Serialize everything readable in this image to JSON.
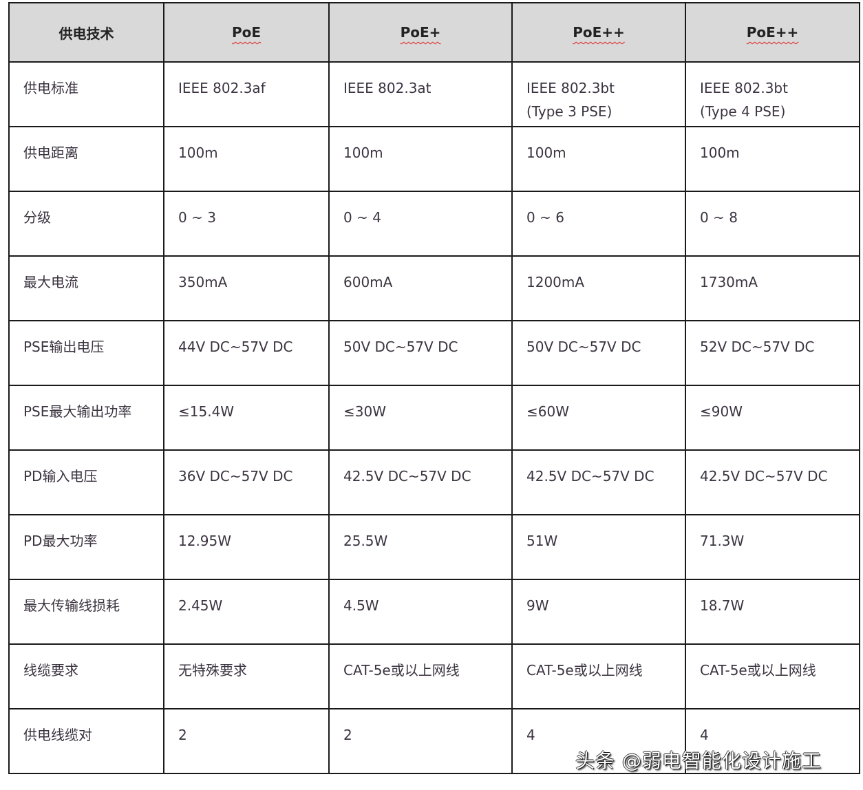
{
  "header": [
    "供电技术",
    "PoE",
    "PoE+",
    "PoE++",
    "PoE++"
  ],
  "rows": [
    [
      "供电标准",
      "IEEE 802.3af",
      "IEEE 802.3at",
      "IEEE 802.3bt\n(Type 3 PSE)",
      "IEEE 802.3bt\n(Type 4 PSE)"
    ],
    [
      "供电距离",
      "100m",
      "100m",
      "100m",
      "100m"
    ],
    [
      "分级",
      "0 ~ 3",
      "0 ~ 4",
      "0 ~ 6",
      "0 ~ 8"
    ],
    [
      "最大电流",
      "350mA",
      "600mA",
      "1200mA",
      "1730mA"
    ],
    [
      "PSE输出电压",
      "44V DC~57V DC",
      "50V DC~57V DC",
      "50V DC~57V DC",
      "52V DC~57V DC"
    ],
    [
      "PSE最大输出功率",
      "≤15.4W",
      "≤30W",
      "≤60W",
      "≤90W"
    ],
    [
      "PD输入电压",
      "36V DC~57V DC",
      "42.5V DC~57V DC",
      "42.5V DC~57V DC",
      "42.5V DC~57V DC"
    ],
    [
      "PD最大功率",
      "12.95W",
      "25.5W",
      "51W",
      "71.3W"
    ],
    [
      "最大传输线损耗",
      "2.45W",
      "4.5W",
      "9W",
      "18.7W"
    ],
    [
      "线缆要求",
      "无特殊要求",
      "CAT-5e或以上网线",
      "CAT-5e或以上网线",
      "CAT-5e或以上网线"
    ],
    [
      "供电线缆对",
      "2",
      "2",
      "4",
      "4"
    ]
  ],
  "watermark": "头条 @弱电智能化设计施工",
  "colors": {
    "header_bg": "#d9d9d9",
    "border": "#1a1a1a",
    "text": "#3b3340"
  }
}
